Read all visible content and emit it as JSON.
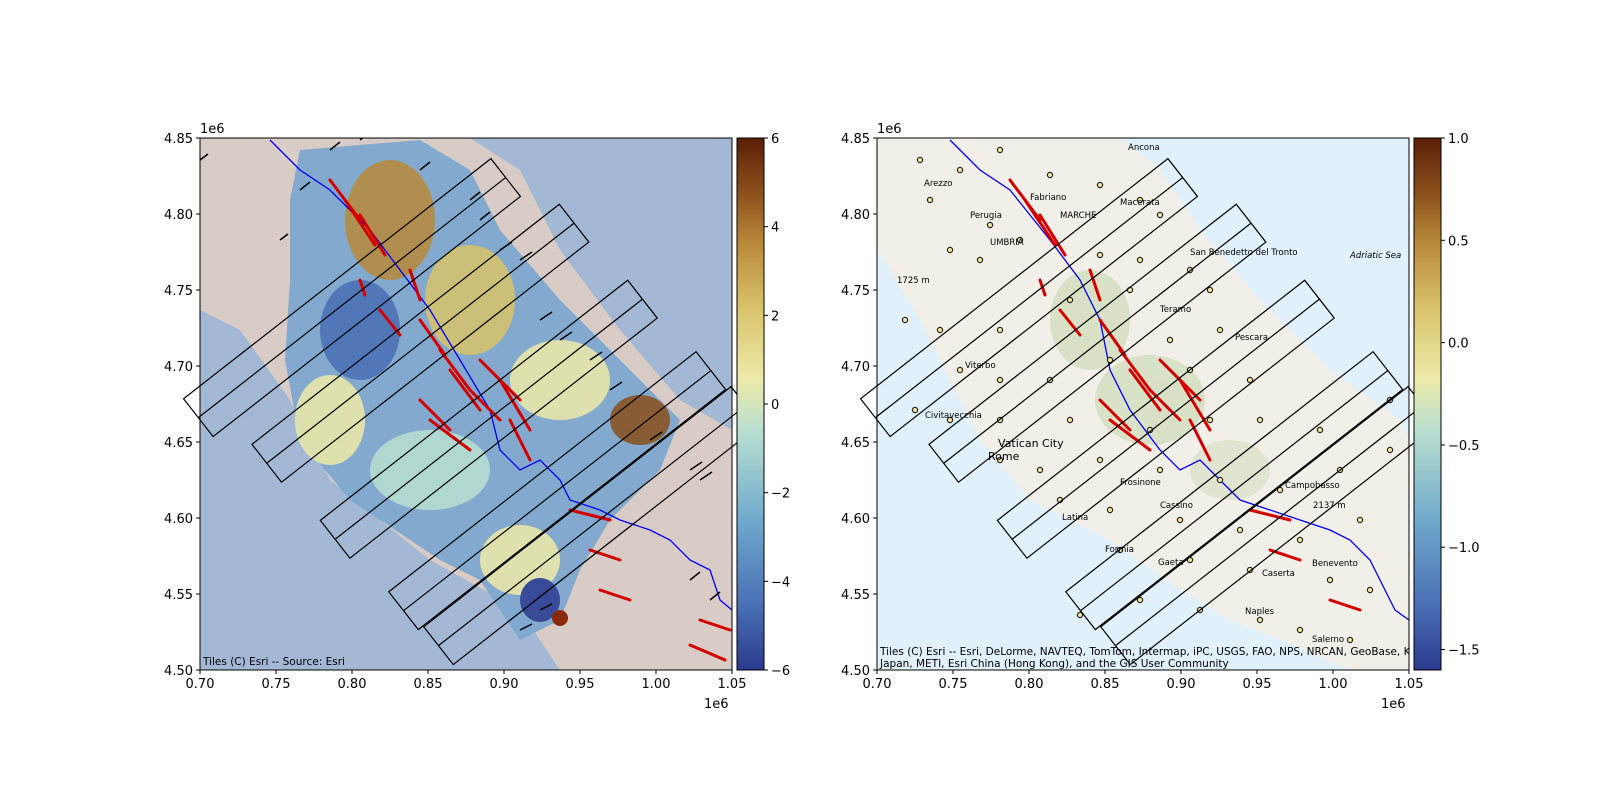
{
  "chart_data": [
    {
      "type": "map",
      "panel": "left",
      "basemap": "shaded relief",
      "attribution": "Tiles (C) Esri -- Source: Esri",
      "xlim": [
        700000,
        1050000
      ],
      "ylim": [
        4500000,
        4850000
      ],
      "x_ticks": [
        "0.70",
        "0.75",
        "0.80",
        "0.85",
        "0.90",
        "0.95",
        "1.00",
        "1.05"
      ],
      "y_ticks": [
        "4.50",
        "4.55",
        "4.60",
        "4.65",
        "4.70",
        "4.75",
        "4.80",
        "4.85"
      ],
      "x_exponent": "1e6",
      "y_exponent": "1e6",
      "colorbar": {
        "cmap": "blue-white-yellow-brown",
        "range": [
          -6,
          6
        ],
        "ticks": [
          "6",
          "4",
          "2",
          "0",
          "−2",
          "−4",
          "−6"
        ],
        "colors": [
          "#2b3a8f",
          "#4a6fb5",
          "#6fa9cc",
          "#b9e0d0",
          "#eeeaa8",
          "#d9c36a",
          "#b98a3a",
          "#8a4f1a",
          "#5a1f08"
        ]
      },
      "rectangles": [
        {
          "center": [
            800000,
            4745000
          ]
        },
        {
          "center": [
            845000,
            4715000
          ]
        },
        {
          "center": [
            890000,
            4665000
          ]
        },
        {
          "center": [
            935000,
            4618000
          ]
        },
        {
          "center": [
            958000,
            4595000
          ]
        }
      ],
      "layers": [
        "displacement field",
        "GNSS velocity arrows",
        "fault traces",
        "boundary line"
      ]
    },
    {
      "type": "map",
      "panel": "right",
      "basemap": "street map",
      "attribution_line1": "Tiles (C) Esri -- Esri, DeLorme, NAVTEQ, TomTom, Intermap, iPC, USGS, FAO, NPS, NRCAN, GeoBase, Kadaster NL, Ordnance Survey,",
      "attribution_line2": "Japan, METI, Esri China (Hong Kong), and the GIS User Community",
      "place_labels": [
        "Ancona",
        "Arezzo",
        "Fabriano",
        "Macerata",
        "Perugia",
        "UMBRIA",
        "MARCHE",
        "San Benedetto del Tronto",
        "Teramo",
        "Pescara",
        "Viterbo",
        "Civitavecchia",
        "Vatican City",
        "Rome",
        "Frosinone",
        "Latina",
        "Cassino",
        "Formia",
        "Gaeta",
        "Campobasso",
        "Benevento",
        "Caserta",
        "Naples",
        "Salerno",
        "Adriatic Sea",
        "1725 m",
        "2137 m"
      ],
      "xlim": [
        700000,
        1050000
      ],
      "ylim": [
        4500000,
        4850000
      ],
      "x_ticks": [
        "0.70",
        "0.75",
        "0.80",
        "0.85",
        "0.90",
        "0.95",
        "1.00",
        "1.05"
      ],
      "y_ticks": [
        "4.50",
        "4.55",
        "4.60",
        "4.65",
        "4.70",
        "4.75",
        "4.80",
        "4.85"
      ],
      "x_exponent": "1e6",
      "y_exponent": "1e6",
      "colorbar": {
        "cmap": "blue-white-yellow-brown",
        "range": [
          -1.6,
          1.0
        ],
        "ticks": [
          {
            "value": 1.0,
            "label": "1.0"
          },
          {
            "value": 0.5,
            "label": "0.5"
          },
          {
            "value": 0.0,
            "label": "0.0"
          },
          {
            "value": -0.5,
            "label": "−0.5"
          },
          {
            "value": -1.0,
            "label": "−1.0"
          },
          {
            "value": -1.5,
            "label": "−1.5"
          }
        ],
        "colors": [
          "#2b3a8f",
          "#4a6fb5",
          "#6fa9cc",
          "#b9e0d0",
          "#eeeaa8",
          "#d9c36a",
          "#b98a3a",
          "#8a4f1a",
          "#5a1f08"
        ]
      },
      "rectangles": [
        {
          "center": [
            800000,
            4745000
          ]
        },
        {
          "center": [
            845000,
            4715000
          ]
        },
        {
          "center": [
            890000,
            4665000
          ]
        },
        {
          "center": [
            935000,
            4618000
          ]
        },
        {
          "center": [
            958000,
            4595000
          ]
        }
      ],
      "layers": [
        "GNSS stations",
        "fault traces",
        "boundary line"
      ]
    }
  ],
  "colors": {
    "fault": "#d40000",
    "boundary": "#0000ee",
    "frame": "#000000",
    "sea_left": "#a3b8d4",
    "land_left": "#d9ccc6",
    "sea_right": "#e0f1fb",
    "land_right": "#f1efe8"
  }
}
